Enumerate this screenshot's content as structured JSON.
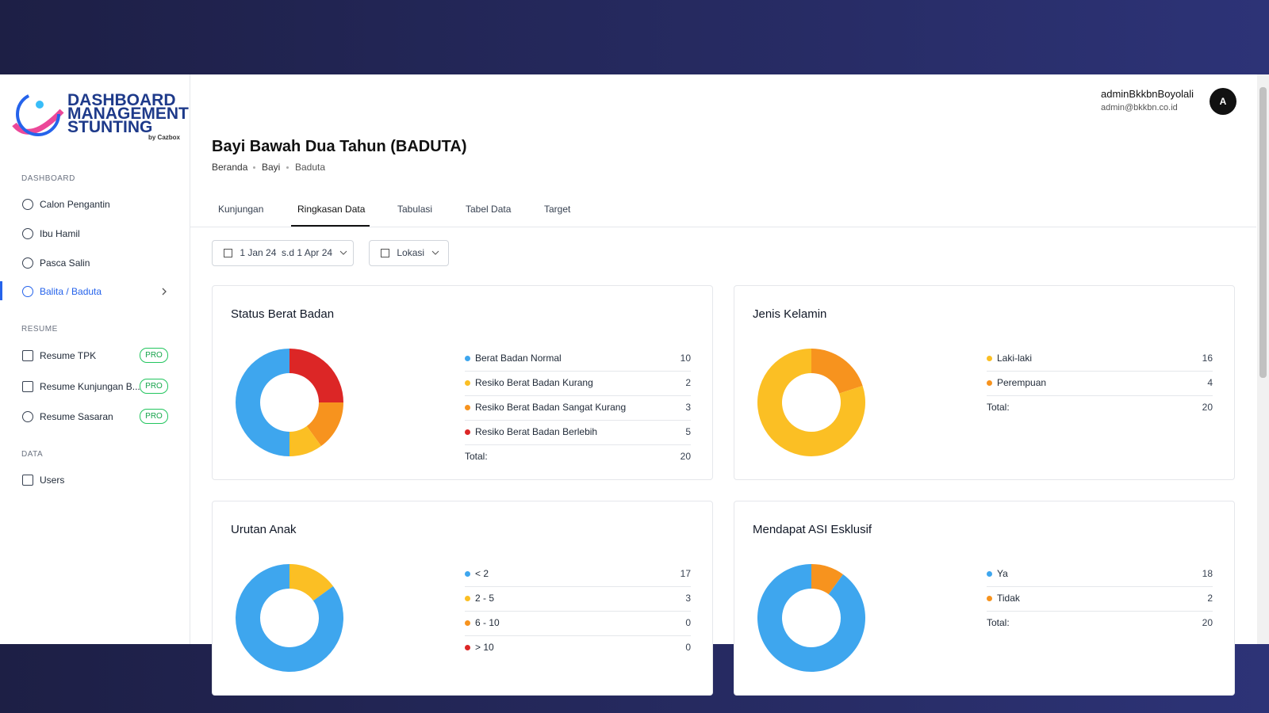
{
  "logo": {
    "line1": "DASHBOARD",
    "line2": "MANAGEMENT",
    "line3": "STUNTING",
    "by": "by Cazbox"
  },
  "sidebar": {
    "sections": [
      {
        "title": "DASHBOARD",
        "items": [
          {
            "label": "Calon Pengantin"
          },
          {
            "label": "Ibu Hamil"
          },
          {
            "label": "Pasca Salin"
          },
          {
            "label": "Balita / Baduta"
          }
        ]
      },
      {
        "title": "RESUME",
        "items": [
          {
            "label": "Resume TPK",
            "badge": "PRO"
          },
          {
            "label": "Resume Kunjungan B...",
            "badge": "PRO"
          },
          {
            "label": "Resume Sasaran",
            "badge": "PRO"
          }
        ]
      },
      {
        "title": "DATA",
        "items": [
          {
            "label": "Users"
          }
        ]
      }
    ]
  },
  "user": {
    "name": "adminBkkbnBoyolali",
    "email": "admin@bkkbn.co.id",
    "avatar": "A"
  },
  "header": {
    "title": "Bayi Bawah Dua Tahun (BADUTA)",
    "breadcrumb": [
      "Beranda",
      "Bayi",
      "Baduta"
    ]
  },
  "tabs": [
    "Kunjungan",
    "Ringkasan Data",
    "Tabulasi",
    "Tabel Data",
    "Target"
  ],
  "filters": {
    "date": "1 Jan 24  s.d 1 Apr 24",
    "location": "Lokasi"
  },
  "cards": [
    {
      "title": "Status Berat Badan",
      "total_label": "Total:",
      "total": 20,
      "items": [
        {
          "label": "Berat Badan Normal",
          "value": 10,
          "color": "#3ea6ee"
        },
        {
          "label": "Resiko Berat Badan Kurang",
          "value": 2,
          "color": "#fbbf24"
        },
        {
          "label": "Resiko Berat Badan Sangat Kurang",
          "value": 3,
          "color": "#f7931e"
        },
        {
          "label": "Resiko Berat Badan Berlebih",
          "value": 5,
          "color": "#dc2626"
        }
      ]
    },
    {
      "title": "Jenis Kelamin",
      "total_label": "Total:",
      "total": 20,
      "items": [
        {
          "label": "Laki-laki",
          "value": 16,
          "color": "#fbbf24"
        },
        {
          "label": "Perempuan",
          "value": 4,
          "color": "#f7931e"
        }
      ]
    },
    {
      "title": "Urutan Anak",
      "items": [
        {
          "label": "< 2",
          "value": 17,
          "color": "#3ea6ee"
        },
        {
          "label": "2 - 5",
          "value": 3,
          "color": "#fbbf24"
        },
        {
          "label": "6 - 10",
          "value": 0,
          "color": "#f7931e"
        },
        {
          "label": "> 10",
          "value": 0,
          "color": "#dc2626"
        }
      ]
    },
    {
      "title": "Mendapat ASI Esklusif",
      "total_label": "Total:",
      "total": 20,
      "items": [
        {
          "label": "Ya",
          "value": 18,
          "color": "#3ea6ee"
        },
        {
          "label": "Tidak",
          "value": 2,
          "color": "#f7931e"
        }
      ]
    }
  ]
}
